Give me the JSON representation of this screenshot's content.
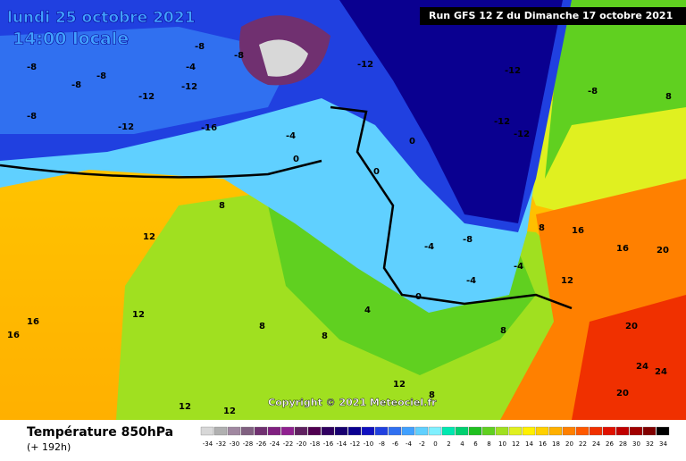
{
  "header": {
    "date": "lundi 25 octobre 2021",
    "time": "14:00 locale",
    "run": "Run GFS 12 Z du Dimanche 17 octobre 2021"
  },
  "copyright": "Copyright © 2021 Meteociel.fr",
  "legend": {
    "title": "Température 850hPa",
    "subtitle": "(+ 192h)",
    "ticks": [
      -34,
      -32,
      -30,
      -28,
      -26,
      -24,
      -22,
      -20,
      -18,
      -16,
      -14,
      -12,
      -10,
      -8,
      -6,
      -4,
      -2,
      0,
      2,
      4,
      6,
      8,
      10,
      12,
      14,
      16,
      18,
      20,
      22,
      24,
      26,
      28,
      30,
      32,
      34
    ],
    "colors": [
      "#d8d8d8",
      "#b0b0b0",
      "#a088a0",
      "#806080",
      "#703070",
      "#802080",
      "#902090",
      "#602060",
      "#500050",
      "#300060",
      "#180070",
      "#0a0090",
      "#1010c0",
      "#2040e0",
      "#3070f0",
      "#40a0ff",
      "#60d0ff",
      "#80f0ff",
      "#00e8b0",
      "#00d070",
      "#20c020",
      "#60d020",
      "#a0e020",
      "#e0f020",
      "#fff000",
      "#ffd000",
      "#ffb000",
      "#ff8000",
      "#ff5800",
      "#f03000",
      "#e01000",
      "#c00000",
      "#a00000",
      "#800000",
      "#000000"
    ]
  },
  "map_labels": [
    -8,
    -8,
    -8,
    -12,
    -12,
    -8,
    -4,
    -8,
    -8,
    -12,
    -16,
    -12,
    -12,
    -12,
    -12,
    -8,
    8,
    -4,
    0,
    0,
    0,
    -4,
    -8,
    -4,
    -4,
    0,
    4,
    8,
    8,
    8,
    12,
    12,
    16,
    16,
    16,
    16,
    20,
    20,
    24,
    24,
    20,
    8,
    12,
    8,
    12,
    12,
    12,
    8
  ]
}
